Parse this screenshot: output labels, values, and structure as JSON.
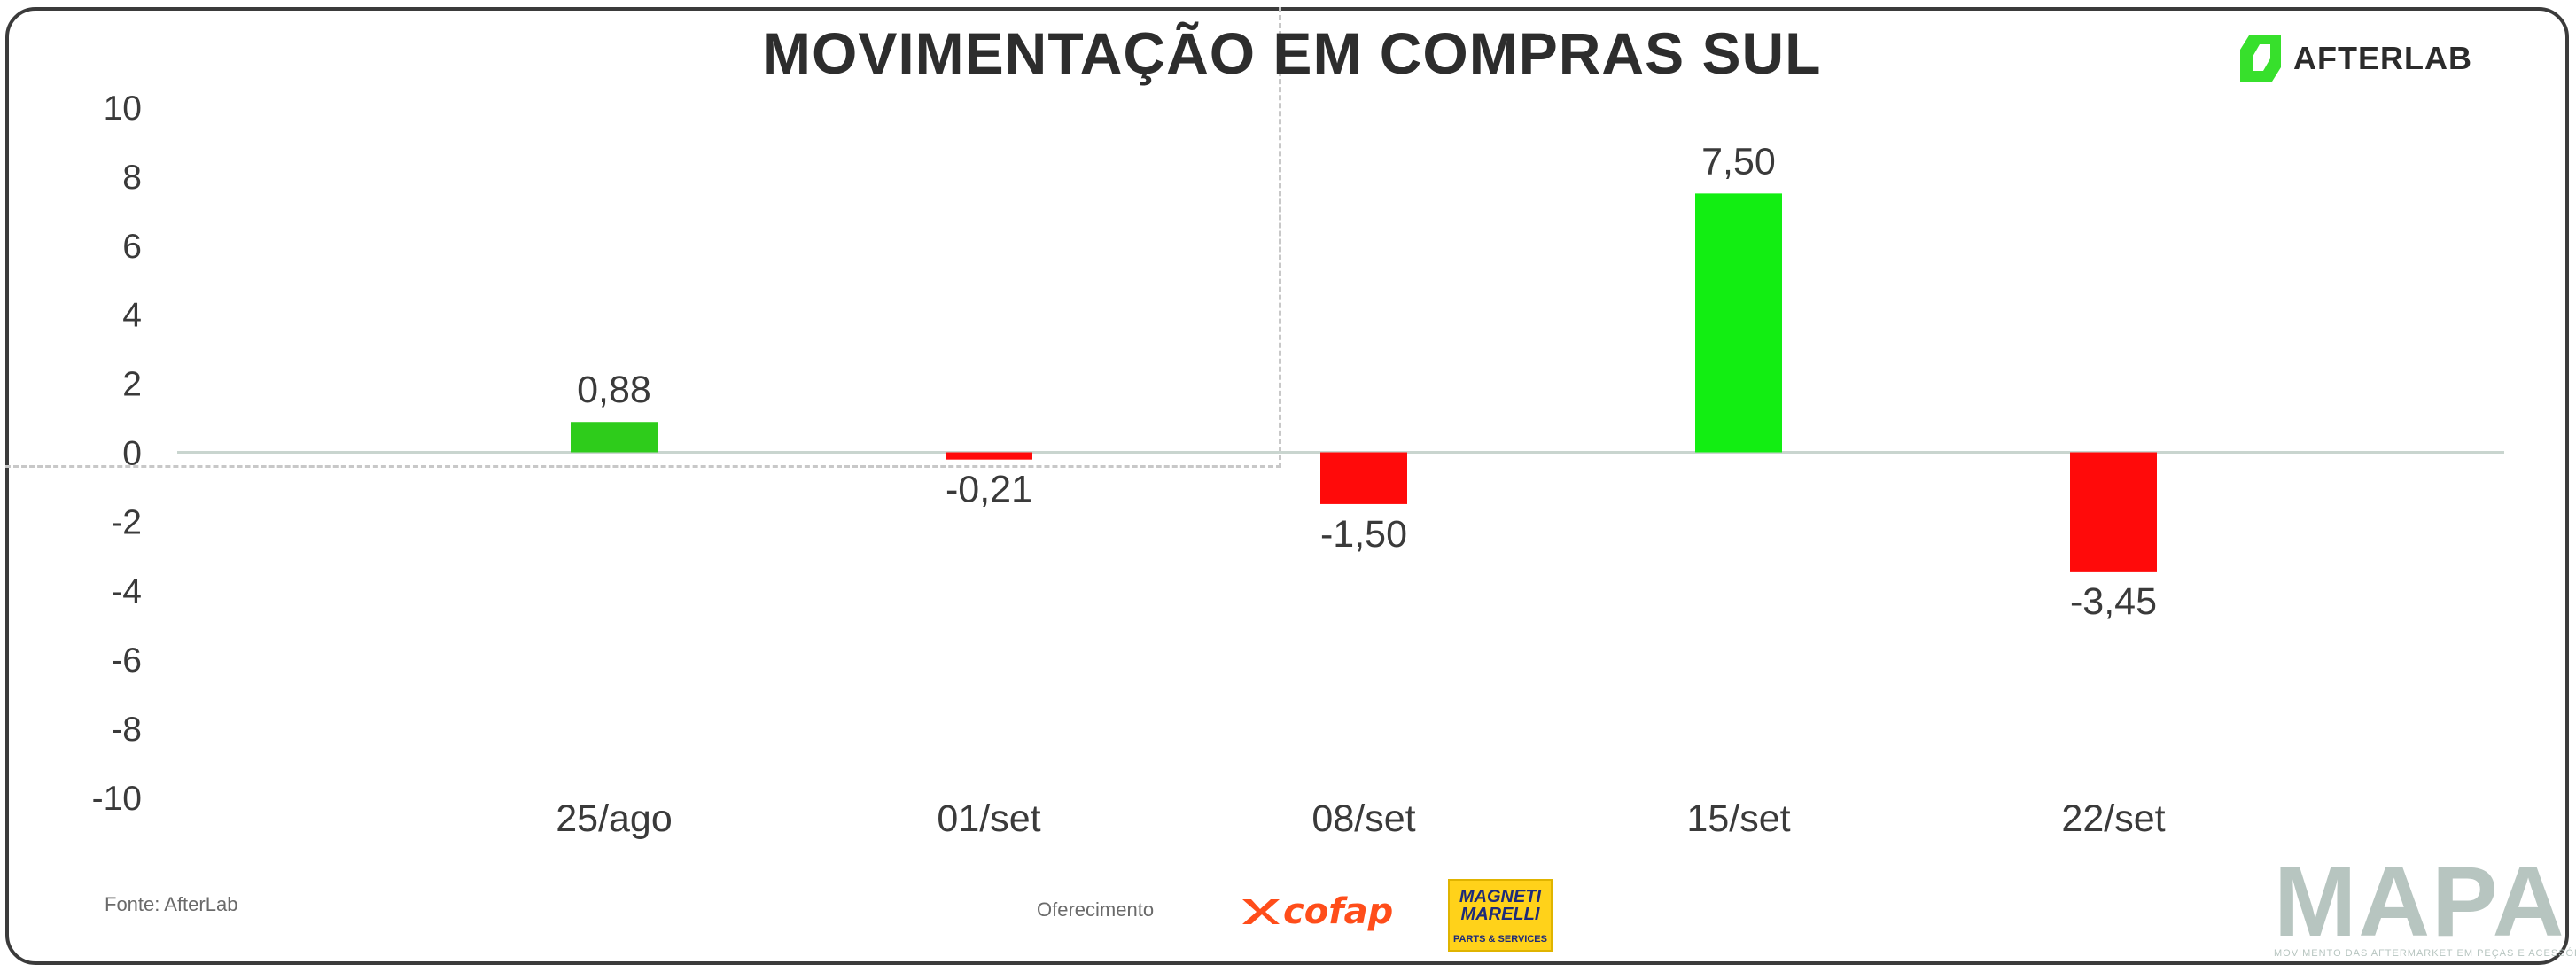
{
  "title": "MOVIMENTAÇÃO EM COMPRAS SUL",
  "brand": {
    "afterlab": "AFTERLAB",
    "mapa": "MAPA",
    "mapa_tagline": "MOVIMENTO DAS AFTERMARKET EM PEÇAS E ACESSÓRIOS"
  },
  "footer": {
    "source": "Fonte: AfterLab",
    "sponsor": "Oferecimento",
    "cofap": "cofap",
    "magneti_line1": "MAGNETI",
    "magneti_line2": "MARELLI",
    "magneti_sub": "PARTS & SERVICES"
  },
  "colors": {
    "positive": "#12ee12",
    "positive_small": "#2ecc1b",
    "negative": "#ff0a0a",
    "zero_line": "#c9d5cf",
    "text": "#3a3a3a",
    "afterlab_green": "#37e02c",
    "cofap_orange": "#ff4d1a",
    "magneti_yellow": "#ffd21a",
    "mapa_gray": "#b7c5c0"
  },
  "chart_data": {
    "type": "bar",
    "categories": [
      "25/ago",
      "01/set",
      "08/set",
      "15/set",
      "22/set"
    ],
    "values": [
      0.88,
      -0.21,
      -1.5,
      7.5,
      -3.45
    ],
    "data_labels": [
      "0,88",
      "-0,21",
      "-1,50",
      "7,50",
      "-3,45"
    ],
    "ylim": [
      -10,
      10
    ],
    "yticks": [
      "10",
      "8",
      "6",
      "4",
      "2",
      "0",
      "-2",
      "-4",
      "-6",
      "-8",
      "-10"
    ],
    "grid": false,
    "legend": "none",
    "title": "MOVIMENTAÇÃO EM COMPRAS SUL",
    "xlabel": "",
    "ylabel": ""
  }
}
